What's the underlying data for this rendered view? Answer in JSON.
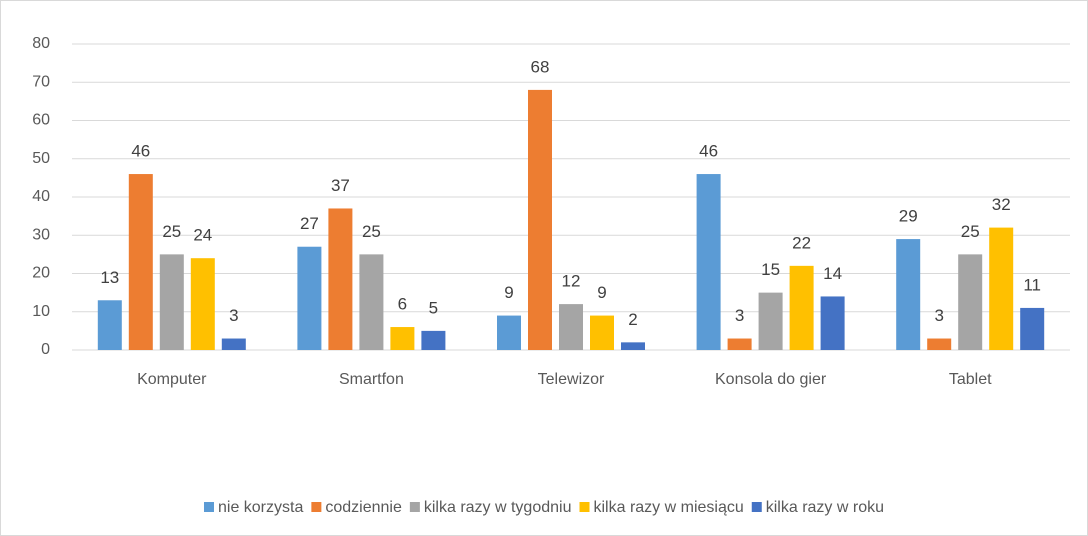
{
  "chart_data": {
    "type": "bar",
    "categories": [
      "Komputer",
      "Smartfon",
      "Telewizor",
      "Konsola do gier",
      "Tablet"
    ],
    "series": [
      {
        "name": "nie korzysta",
        "color": "#5b9bd5",
        "values": [
          13,
          27,
          9,
          46,
          29
        ]
      },
      {
        "name": "codziennie",
        "color": "#ed7d31",
        "values": [
          46,
          37,
          68,
          3,
          3
        ]
      },
      {
        "name": "kilka razy w tygodniu",
        "color": "#a5a5a5",
        "values": [
          25,
          25,
          12,
          15,
          25
        ]
      },
      {
        "name": "kilka razy w miesiącu",
        "color": "#ffc000",
        "values": [
          24,
          6,
          9,
          22,
          32
        ]
      },
      {
        "name": "kilka razy w roku",
        "color": "#4472c4",
        "values": [
          3,
          5,
          2,
          14,
          11
        ]
      }
    ],
    "ylim": [
      0,
      80
    ],
    "yticks": [
      0,
      10,
      20,
      30,
      40,
      50,
      60,
      70,
      80
    ],
    "grid": true,
    "legend": "bottom"
  }
}
